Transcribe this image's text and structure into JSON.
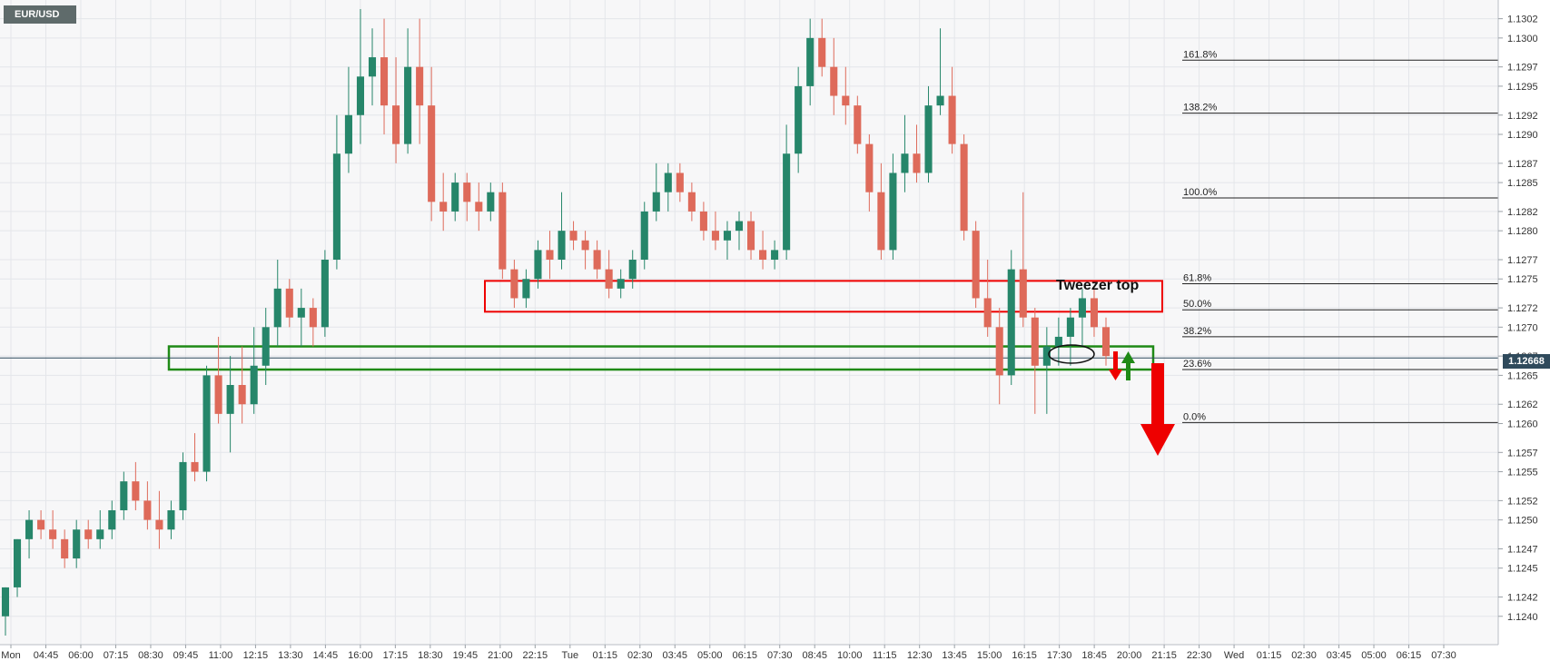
{
  "symbol": "EUR/USD",
  "last_price_label": "1.12668",
  "annotation": "Tweezer top",
  "colors": {
    "bull": "#26866a",
    "bear": "#de6a5a",
    "resistance_box": "#ee0000",
    "support_box": "#1f8a16",
    "arrow_down": "#ee0000",
    "arrow_up": "#1f8a16",
    "grid": "#e4e6ea",
    "background": "#f7f7f8"
  },
  "chart_data": {
    "type": "candlestick",
    "ylim": [
      1.1238,
      1.1303
    ],
    "y_ticks": [
      "1.1240",
      "1.1242",
      "1.1245",
      "1.1247",
      "1.1250",
      "1.1252",
      "1.1255",
      "1.1257",
      "1.1260",
      "1.1262",
      "1.1265",
      "1.1267",
      "1.1270",
      "1.1272",
      "1.1275",
      "1.1277",
      "1.1280",
      "1.1282",
      "1.1285",
      "1.1287",
      "1.1290",
      "1.1292",
      "1.1295",
      "1.1297",
      "1.1300",
      "1.1302"
    ],
    "x_ticks": [
      "Mon",
      "04:45",
      "06:00",
      "07:15",
      "08:30",
      "09:45",
      "11:00",
      "12:15",
      "13:30",
      "14:45",
      "16:00",
      "17:15",
      "18:30",
      "19:45",
      "21:00",
      "22:15",
      "Tue",
      "01:15",
      "02:30",
      "03:45",
      "05:00",
      "06:15",
      "07:30",
      "08:45",
      "10:00",
      "11:15",
      "12:30",
      "13:45",
      "15:00",
      "16:15",
      "17:30",
      "18:45",
      "20:00",
      "21:15",
      "22:30",
      "Wed",
      "01:15",
      "02:30",
      "03:45",
      "05:00",
      "06:15",
      "07:30"
    ],
    "fib_levels": [
      {
        "label": "161.8%",
        "value": 1.12977
      },
      {
        "label": "138.2%",
        "value": 1.12922
      },
      {
        "label": "100.0%",
        "value": 1.12834
      },
      {
        "label": "61.8%",
        "value": 1.12745
      },
      {
        "label": "50.0%",
        "value": 1.12718
      },
      {
        "label": "38.2%",
        "value": 1.1269
      },
      {
        "label": "23.6%",
        "value": 1.12656
      },
      {
        "label": "0.0%",
        "value": 1.12601
      }
    ],
    "last_price": 1.12668,
    "zones": [
      {
        "name": "resistance",
        "top": 1.12748,
        "bottom": 1.12716
      },
      {
        "name": "support",
        "top": 1.1268,
        "bottom": 1.12656
      }
    ],
    "ohlc": [
      [
        1.124,
        1.1243,
        1.1238,
        1.1243
      ],
      [
        1.1243,
        1.1248,
        1.1242,
        1.1248
      ],
      [
        1.1248,
        1.1251,
        1.1246,
        1.125
      ],
      [
        1.125,
        1.1251,
        1.1248,
        1.1249
      ],
      [
        1.1249,
        1.1251,
        1.1247,
        1.1248
      ],
      [
        1.1248,
        1.1249,
        1.1245,
        1.1246
      ],
      [
        1.1246,
        1.125,
        1.1245,
        1.1249
      ],
      [
        1.1249,
        1.125,
        1.1247,
        1.1248
      ],
      [
        1.1248,
        1.1251,
        1.1247,
        1.1249
      ],
      [
        1.1249,
        1.1252,
        1.1248,
        1.1251
      ],
      [
        1.1251,
        1.1255,
        1.125,
        1.1254
      ],
      [
        1.1254,
        1.1256,
        1.1251,
        1.1252
      ],
      [
        1.1252,
        1.1254,
        1.1249,
        1.125
      ],
      [
        1.125,
        1.1253,
        1.1247,
        1.1249
      ],
      [
        1.1249,
        1.1252,
        1.1248,
        1.1251
      ],
      [
        1.1251,
        1.1257,
        1.125,
        1.1256
      ],
      [
        1.1256,
        1.1259,
        1.1254,
        1.1255
      ],
      [
        1.1255,
        1.1266,
        1.1254,
        1.1265
      ],
      [
        1.1265,
        1.1269,
        1.126,
        1.1261
      ],
      [
        1.1261,
        1.1267,
        1.1257,
        1.1264
      ],
      [
        1.1264,
        1.1268,
        1.126,
        1.1262
      ],
      [
        1.1262,
        1.127,
        1.1261,
        1.1266
      ],
      [
        1.1266,
        1.1272,
        1.1264,
        1.127
      ],
      [
        1.127,
        1.1277,
        1.1268,
        1.1274
      ],
      [
        1.1274,
        1.1275,
        1.127,
        1.1271
      ],
      [
        1.1271,
        1.1274,
        1.1268,
        1.1272
      ],
      [
        1.1272,
        1.1273,
        1.1268,
        1.127
      ],
      [
        1.127,
        1.1278,
        1.1269,
        1.1277
      ],
      [
        1.1277,
        1.1292,
        1.1276,
        1.1288
      ],
      [
        1.1288,
        1.1297,
        1.1286,
        1.1292
      ],
      [
        1.1292,
        1.1303,
        1.1289,
        1.1296
      ],
      [
        1.1296,
        1.1301,
        1.1293,
        1.1298
      ],
      [
        1.1298,
        1.1302,
        1.129,
        1.1293
      ],
      [
        1.1293,
        1.1298,
        1.1287,
        1.1289
      ],
      [
        1.1289,
        1.1301,
        1.1288,
        1.1297
      ],
      [
        1.1297,
        1.1302,
        1.1289,
        1.1293
      ],
      [
        1.1293,
        1.1297,
        1.1281,
        1.1283
      ],
      [
        1.1283,
        1.1286,
        1.128,
        1.1282
      ],
      [
        1.1282,
        1.1286,
        1.1281,
        1.1285
      ],
      [
        1.1285,
        1.1286,
        1.1281,
        1.1283
      ],
      [
        1.1283,
        1.1285,
        1.128,
        1.1282
      ],
      [
        1.1282,
        1.1285,
        1.1281,
        1.1284
      ],
      [
        1.1284,
        1.1285,
        1.1275,
        1.1276
      ],
      [
        1.1276,
        1.1277,
        1.1272,
        1.1273
      ],
      [
        1.1273,
        1.1276,
        1.1272,
        1.1275
      ],
      [
        1.1275,
        1.1279,
        1.1274,
        1.1278
      ],
      [
        1.1278,
        1.128,
        1.1275,
        1.1277
      ],
      [
        1.1277,
        1.1284,
        1.1276,
        1.128
      ],
      [
        1.128,
        1.1281,
        1.1278,
        1.1279
      ],
      [
        1.1279,
        1.128,
        1.1276,
        1.1278
      ],
      [
        1.1278,
        1.1279,
        1.1275,
        1.1276
      ],
      [
        1.1276,
        1.1278,
        1.1273,
        1.1274
      ],
      [
        1.1274,
        1.1276,
        1.1273,
        1.1275
      ],
      [
        1.1275,
        1.1278,
        1.1274,
        1.1277
      ],
      [
        1.1277,
        1.1283,
        1.1276,
        1.1282
      ],
      [
        1.1282,
        1.1287,
        1.1281,
        1.1284
      ],
      [
        1.1284,
        1.1287,
        1.1282,
        1.1286
      ],
      [
        1.1286,
        1.1287,
        1.1283,
        1.1284
      ],
      [
        1.1284,
        1.1285,
        1.1281,
        1.1282
      ],
      [
        1.1282,
        1.1283,
        1.1279,
        1.128
      ],
      [
        1.128,
        1.1282,
        1.1278,
        1.1279
      ],
      [
        1.1279,
        1.1281,
        1.1277,
        1.128
      ],
      [
        1.128,
        1.1282,
        1.1278,
        1.1281
      ],
      [
        1.1281,
        1.1282,
        1.1277,
        1.1278
      ],
      [
        1.1278,
        1.128,
        1.1276,
        1.1277
      ],
      [
        1.1277,
        1.1279,
        1.1276,
        1.1278
      ],
      [
        1.1278,
        1.1291,
        1.1277,
        1.1288
      ],
      [
        1.1288,
        1.1297,
        1.1286,
        1.1295
      ],
      [
        1.1295,
        1.1302,
        1.1293,
        1.13
      ],
      [
        1.13,
        1.1302,
        1.1296,
        1.1297
      ],
      [
        1.1297,
        1.13,
        1.1292,
        1.1294
      ],
      [
        1.1294,
        1.1297,
        1.1291,
        1.1293
      ],
      [
        1.1293,
        1.1294,
        1.1288,
        1.1289
      ],
      [
        1.1289,
        1.129,
        1.1282,
        1.1284
      ],
      [
        1.1284,
        1.1287,
        1.1277,
        1.1278
      ],
      [
        1.1278,
        1.1288,
        1.1277,
        1.1286
      ],
      [
        1.1286,
        1.1292,
        1.1284,
        1.1288
      ],
      [
        1.1288,
        1.1291,
        1.1285,
        1.1286
      ],
      [
        1.1286,
        1.1295,
        1.1285,
        1.1293
      ],
      [
        1.1293,
        1.1301,
        1.1292,
        1.1294
      ],
      [
        1.1294,
        1.1297,
        1.1288,
        1.1289
      ],
      [
        1.1289,
        1.129,
        1.1279,
        1.128
      ],
      [
        1.128,
        1.1281,
        1.1272,
        1.1273
      ],
      [
        1.1273,
        1.1277,
        1.1269,
        1.127
      ],
      [
        1.127,
        1.1272,
        1.1262,
        1.1265
      ],
      [
        1.1265,
        1.1278,
        1.1264,
        1.1276
      ],
      [
        1.1276,
        1.1284,
        1.127,
        1.1271
      ],
      [
        1.1271,
        1.1272,
        1.1261,
        1.1266
      ],
      [
        1.1266,
        1.127,
        1.1261,
        1.1268
      ],
      [
        1.1268,
        1.1271,
        1.1266,
        1.1269
      ],
      [
        1.1269,
        1.1272,
        1.1266,
        1.1271
      ],
      [
        1.1271,
        1.1274,
        1.1268,
        1.1273
      ],
      [
        1.1273,
        1.1274,
        1.1269,
        1.127
      ],
      [
        1.127,
        1.1271,
        1.1266,
        1.1267
      ]
    ]
  }
}
